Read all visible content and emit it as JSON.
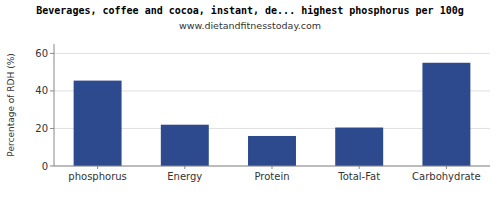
{
  "chart_data": {
    "type": "bar",
    "title": "Beverages, coffee and cocoa, instant, de... highest phosphorus per 100g",
    "subtitle": "www.dietandfitnesstoday.com",
    "categories": [
      "phosphorus",
      "Energy",
      "Protein",
      "Total-Fat",
      "Carbohydrate"
    ],
    "values": [
      45.5,
      22.0,
      16.0,
      20.5,
      55.0
    ],
    "color": "#2e4a8e",
    "ylabel": "Percentage of RDH (%)",
    "ylim": [
      0,
      65
    ],
    "yticks": [
      0,
      20,
      40,
      60
    ],
    "grid": true
  }
}
